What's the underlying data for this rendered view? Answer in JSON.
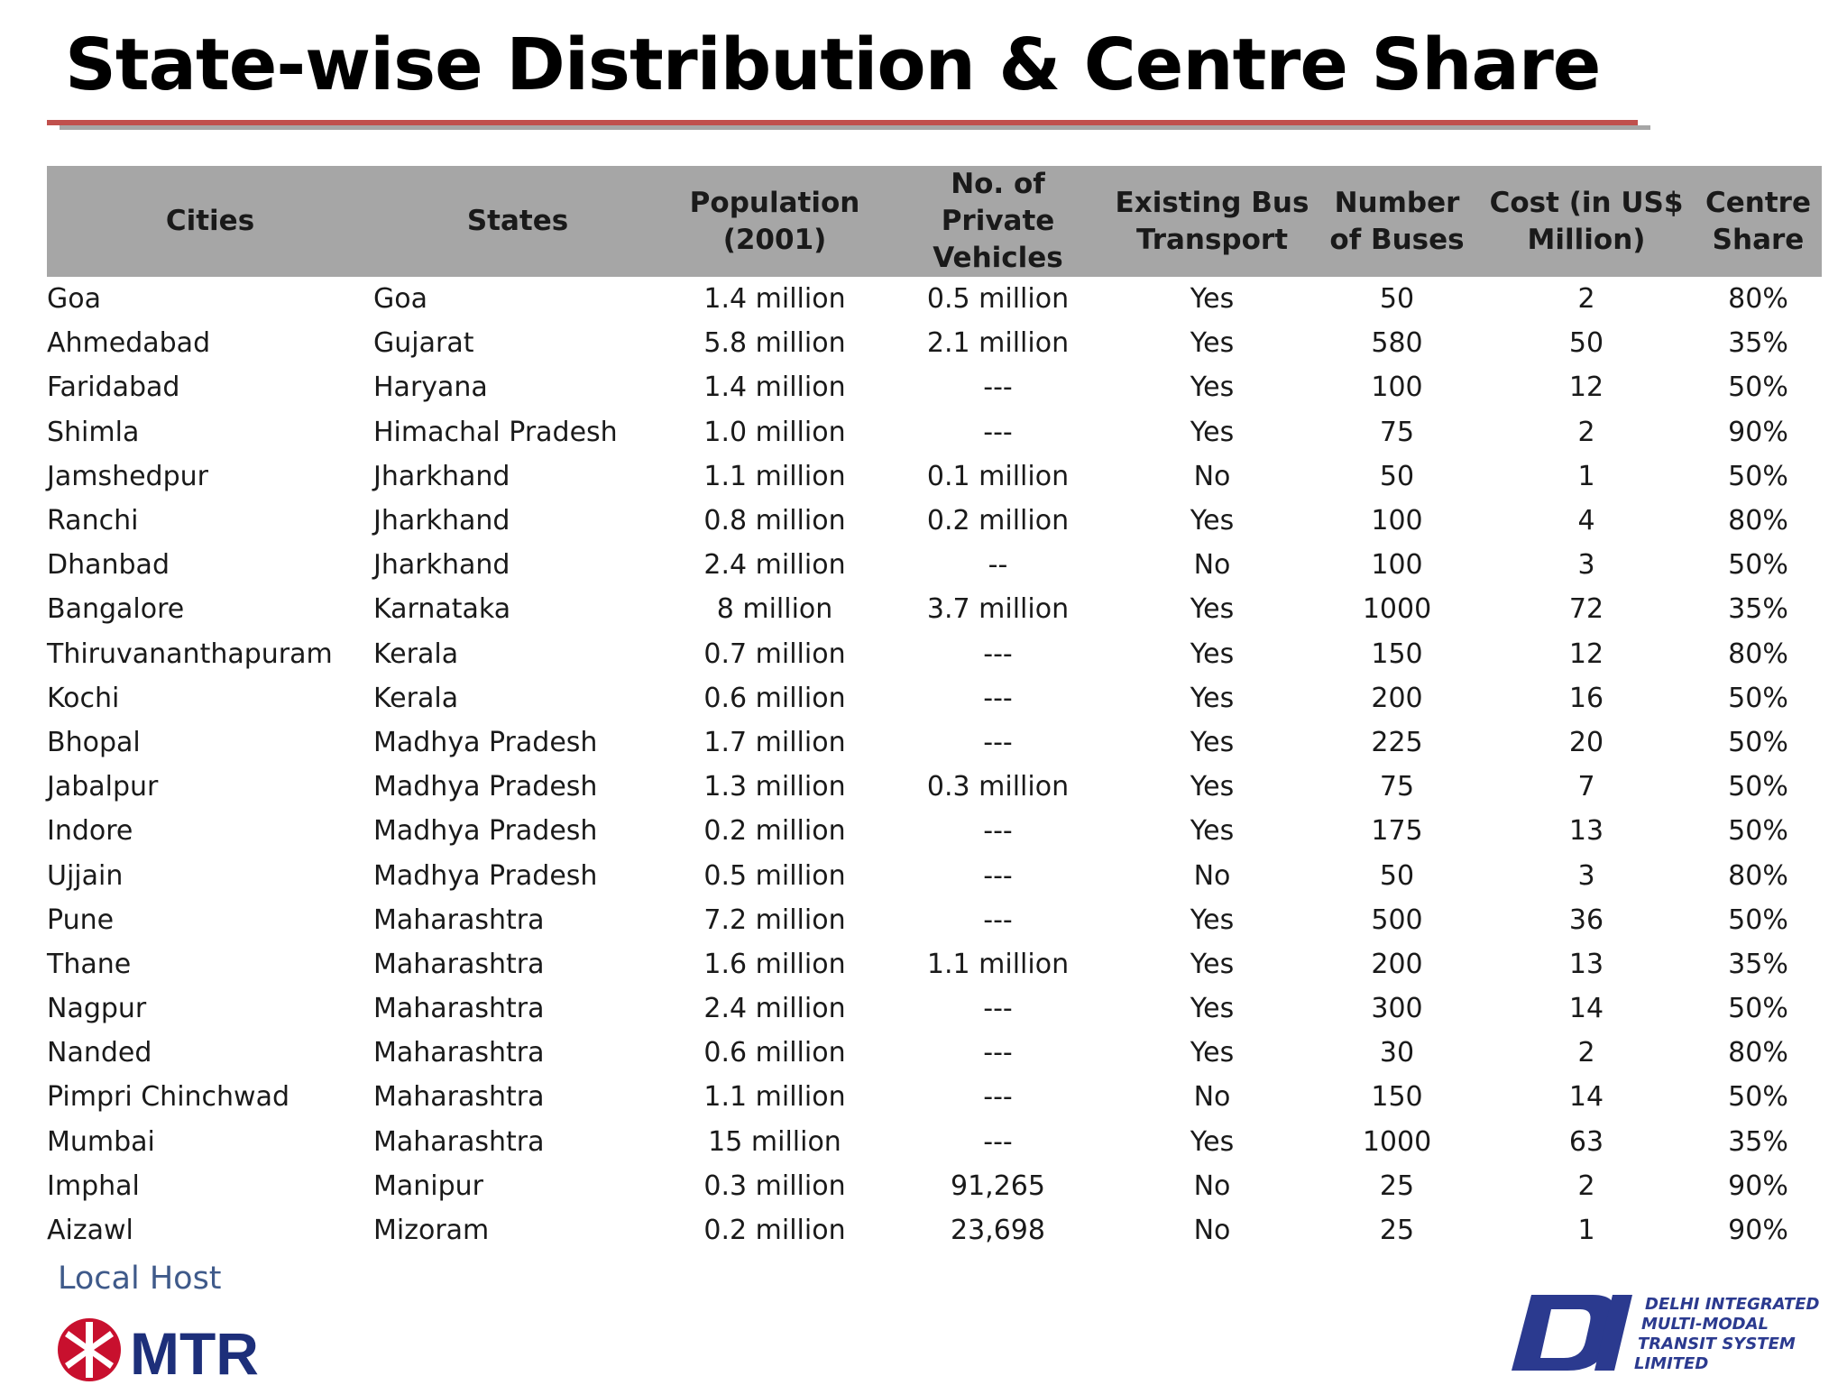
{
  "title": "State-wise Distribution & Centre Share",
  "table": {
    "headers": {
      "cities": "Cities",
      "states": "States",
      "population": "Population (2001)",
      "vehicles": "No. of Private Vehicles",
      "bus_transport": "Existing Bus Transport",
      "buses": "Number of Buses",
      "cost": "Cost (in US$ Million)",
      "share": "Centre Share"
    },
    "rows": [
      {
        "city": "Goa",
        "state": "Goa",
        "population": "1.4 million",
        "vehicles": "0.5 million",
        "bus": "Yes",
        "buses": "50",
        "cost": "2",
        "share": "80%"
      },
      {
        "city": "Ahmedabad",
        "state": "Gujarat",
        "population": "5.8 million",
        "vehicles": "2.1 million",
        "bus": "Yes",
        "buses": "580",
        "cost": "50",
        "share": "35%"
      },
      {
        "city": "Faridabad",
        "state": "Haryana",
        "population": "1.4 million",
        "vehicles": "---",
        "bus": "Yes",
        "buses": "100",
        "cost": "12",
        "share": "50%"
      },
      {
        "city": "Shimla",
        "state": "Himachal Pradesh",
        "population": "1.0 million",
        "vehicles": "---",
        "bus": "Yes",
        "buses": "75",
        "cost": "2",
        "share": "90%"
      },
      {
        "city": "Jamshedpur",
        "state": "Jharkhand",
        "population": "1.1 million",
        "vehicles": "0.1 million",
        "bus": "No",
        "buses": "50",
        "cost": "1",
        "share": "50%"
      },
      {
        "city": "Ranchi",
        "state": "Jharkhand",
        "population": "0.8 million",
        "vehicles": "0.2 million",
        "bus": "Yes",
        "buses": "100",
        "cost": "4",
        "share": "80%"
      },
      {
        "city": "Dhanbad",
        "state": "Jharkhand",
        "population": "2.4 million",
        "vehicles": "--",
        "bus": "No",
        "buses": "100",
        "cost": "3",
        "share": "50%"
      },
      {
        "city": "Bangalore",
        "state": "Karnataka",
        "population": "8 million",
        "vehicles": "3.7 million",
        "bus": "Yes",
        "buses": "1000",
        "cost": "72",
        "share": "35%"
      },
      {
        "city": "Thiruvananthapuram",
        "state": "Kerala",
        "population": "0.7 million",
        "vehicles": "---",
        "bus": "Yes",
        "buses": "150",
        "cost": "12",
        "share": "80%"
      },
      {
        "city": "Kochi",
        "state": "Kerala",
        "population": "0.6 million",
        "vehicles": "---",
        "bus": "Yes",
        "buses": "200",
        "cost": "16",
        "share": "50%"
      },
      {
        "city": "Bhopal",
        "state": "Madhya Pradesh",
        "population": "1.7 million",
        "vehicles": "---",
        "bus": "Yes",
        "buses": "225",
        "cost": "20",
        "share": "50%"
      },
      {
        "city": "Jabalpur",
        "state": "Madhya Pradesh",
        "population": "1.3 million",
        "vehicles": "0.3 million",
        "bus": "Yes",
        "buses": "75",
        "cost": "7",
        "share": "50%"
      },
      {
        "city": "Indore",
        "state": "Madhya Pradesh",
        "population": "0.2 million",
        "vehicles": "---",
        "bus": "Yes",
        "buses": "175",
        "cost": "13",
        "share": "50%"
      },
      {
        "city": "Ujjain",
        "state": "Madhya Pradesh",
        "population": "0.5 million",
        "vehicles": "---",
        "bus": "No",
        "buses": "50",
        "cost": "3",
        "share": "80%"
      },
      {
        "city": "Pune",
        "state": "Maharashtra",
        "population": "7.2 million",
        "vehicles": "---",
        "bus": "Yes",
        "buses": "500",
        "cost": "36",
        "share": "50%"
      },
      {
        "city": "Thane",
        "state": "Maharashtra",
        "population": "1.6 million",
        "vehicles": "1.1 million",
        "bus": "Yes",
        "buses": "200",
        "cost": "13",
        "share": "35%"
      },
      {
        "city": "Nagpur",
        "state": "Maharashtra",
        "population": "2.4 million",
        "vehicles": "---",
        "bus": "Yes",
        "buses": "300",
        "cost": "14",
        "share": "50%"
      },
      {
        "city": "Nanded",
        "state": "Maharashtra",
        "population": "0.6 million",
        "vehicles": "---",
        "bus": "Yes",
        "buses": "30",
        "cost": "2",
        "share": "80%"
      },
      {
        "city": "Pimpri Chinchwad",
        "state": "Maharashtra",
        "population": "1.1 million",
        "vehicles": "---",
        "bus": "No",
        "buses": "150",
        "cost": "14",
        "share": "50%"
      },
      {
        "city": "Mumbai",
        "state": "Maharashtra",
        "population": "15 million",
        "vehicles": "---",
        "bus": "Yes",
        "buses": "1000",
        "cost": "63",
        "share": "35%"
      },
      {
        "city": "Imphal",
        "state": "Manipur",
        "population": "0.3 million",
        "vehicles": "91,265",
        "bus": "No",
        "buses": "25",
        "cost": "2",
        "share": "90%"
      },
      {
        "city": "Aizawl",
        "state": "Mizoram",
        "population": "0.2 million",
        "vehicles": "23,698",
        "bus": "No",
        "buses": "25",
        "cost": "1",
        "share": "90%"
      }
    ]
  },
  "footer": {
    "host_label": "Local Host",
    "mtr_logo_text": "MTR",
    "dimts_lines": [
      "DELHI INTEGRATED",
      "MULTI-MODAL",
      "TRANSIT SYSTEM",
      "LIMITED"
    ]
  },
  "colors": {
    "title_rule": "#c0504d",
    "header_bg": "#a6a6a6",
    "mtr_red": "#c8102e",
    "mtr_blue": "#1d2f7a",
    "dimts_blue": "#2b3a8f"
  },
  "icons": {
    "mtr": "mtr-logo-icon",
    "dimts": "dimts-logo-icon"
  }
}
